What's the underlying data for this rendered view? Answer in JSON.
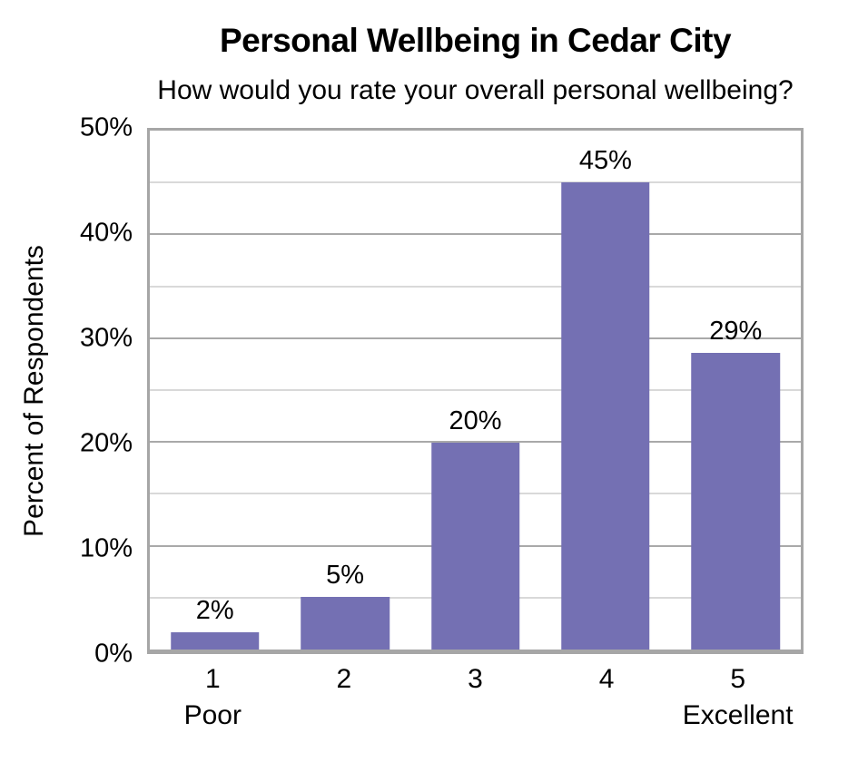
{
  "title": "Personal Wellbeing in Cedar City",
  "subtitle": "How would you rate your overall personal wellbeing?",
  "chart_data": {
    "type": "bar",
    "categories": [
      "1",
      "2",
      "3",
      "4",
      "5"
    ],
    "category_sublabels": [
      "Poor",
      "",
      "",
      "",
      "Excellent"
    ],
    "values": [
      1.7,
      5.1,
      19.9,
      45.0,
      28.6
    ],
    "bar_labels": [
      "2%",
      "5%",
      "20%",
      "45%",
      "29%"
    ],
    "title": "Personal Wellbeing in Cedar City",
    "subtitle": "How would you rate your overall personal wellbeing?",
    "xlabel": "",
    "ylabel": "Percent of Respondents",
    "ylim": [
      0,
      50
    ],
    "yticks": [
      {
        "value": 0,
        "label": "0%"
      },
      {
        "value": 10,
        "label": "10%"
      },
      {
        "value": 20,
        "label": "20%"
      },
      {
        "value": 30,
        "label": "30%"
      },
      {
        "value": 40,
        "label": "40%"
      },
      {
        "value": 50,
        "label": "50%"
      }
    ],
    "ygrid_major": [
      10,
      20,
      30,
      40
    ],
    "ygrid_minor": [
      5,
      15,
      25,
      35,
      45
    ],
    "grid": true,
    "legend": false,
    "colors": {
      "bar": "#7470B3",
      "gridline_major": "#A9A9A9",
      "gridline_minor": "#D9D9D9",
      "axis_border": "#A6A6A6",
      "text": "#000000"
    }
  }
}
